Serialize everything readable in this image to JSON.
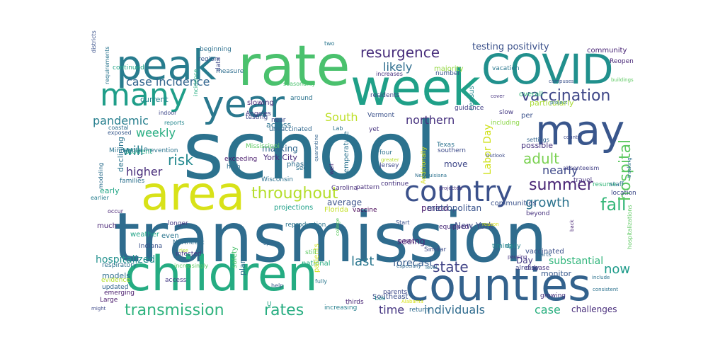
{
  "words": [
    {
      "text": "school",
      "color": "#2c728e"
    },
    {
      "text": "transmission",
      "color": "#2f6c8e"
    },
    {
      "text": "children",
      "color": "#25ac82"
    },
    {
      "text": "counties",
      "color": "#33628d"
    },
    {
      "text": "area",
      "color": "#d8e219"
    },
    {
      "text": "rate",
      "color": "#4ac16d"
    },
    {
      "text": "week",
      "color": "#1fa088"
    },
    {
      "text": "peak",
      "color": "#287c8e"
    },
    {
      "text": "COVID",
      "color": "#21908d"
    },
    {
      "text": "may",
      "color": "#39568c"
    },
    {
      "text": "many",
      "color": "#1f9e89"
    },
    {
      "text": "year",
      "color": "#2a788e"
    },
    {
      "text": "country",
      "color": "#3b518b"
    },
    {
      "text": "transmission",
      "color": "#2db27d"
    },
    {
      "text": "rates",
      "color": "#27ad81"
    },
    {
      "text": "throughout",
      "color": "#b5de2b"
    },
    {
      "text": "resurgence",
      "color": "#472d7b"
    },
    {
      "text": "vaccination",
      "color": "#3f4788"
    },
    {
      "text": "case incidence",
      "color": "#32658e"
    },
    {
      "text": "summer",
      "color": "#482475"
    },
    {
      "text": "fall",
      "color": "#35b779"
    },
    {
      "text": "risk",
      "color": "#23898e"
    },
    {
      "text": "adult",
      "color": "#7ad151"
    },
    {
      "text": "growth",
      "color": "#2c738e"
    },
    {
      "text": "hospital",
      "color": "#5ec962"
    },
    {
      "text": "state",
      "color": "#414487"
    },
    {
      "text": "last",
      "color": "#2a768e"
    },
    {
      "text": "individuals",
      "color": "#2f6b8e"
    },
    {
      "text": "time",
      "color": "#453581"
    },
    {
      "text": "case",
      "color": "#29af7f"
    },
    {
      "text": "now",
      "color": "#1e9b8a"
    },
    {
      "text": "nearly",
      "color": "#3e4989"
    },
    {
      "text": "higher",
      "color": "#472c7a"
    },
    {
      "text": "will",
      "color": "#26818e"
    },
    {
      "text": "weekly",
      "color": "#26ad81"
    },
    {
      "text": "pandemic",
      "color": "#277f8e"
    },
    {
      "text": "northern",
      "color": "#46317e"
    },
    {
      "text": "South",
      "color": "#bddf26"
    },
    {
      "text": "likely",
      "color": "#2e6d8e"
    },
    {
      "text": "hospitalized",
      "color": "#21908d"
    },
    {
      "text": "substantial",
      "color": "#31b57b"
    },
    {
      "text": "testing positivity",
      "color": "#3b518b"
    },
    {
      "text": "forecast",
      "color": "#365c8d"
    },
    {
      "text": "challenges",
      "color": "#472c7a"
    },
    {
      "text": "Labor Day",
      "color": "#d0e11c"
    },
    {
      "text": "New York",
      "color": "#3e4a89"
    },
    {
      "text": "seeing",
      "color": "#482878"
    },
    {
      "text": "masking",
      "color": "#31678e"
    },
    {
      "text": "move",
      "color": "#3f4889"
    },
    {
      "text": "period",
      "color": "#48196b"
    },
    {
      "text": "average",
      "color": "#3b528b"
    },
    {
      "text": "metropolitan",
      "color": "#3a548c"
    },
    {
      "text": "Day",
      "color": "#443a83"
    },
    {
      "text": "possible",
      "color": "#46337f"
    },
    {
      "text": "declining",
      "color": "#2b748e"
    },
    {
      "text": "early",
      "color": "#21a585"
    },
    {
      "text": "models",
      "color": "#2e6f8e"
    },
    {
      "text": "monitor",
      "color": "#38598c"
    },
    {
      "text": "current",
      "color": "#24868e"
    },
    {
      "text": "community",
      "color": "#482475"
    },
    {
      "text": "overall",
      "color": "#35b779"
    },
    {
      "text": "census",
      "color": "#23898e"
    },
    {
      "text": "per",
      "color": "#3b528b"
    },
    {
      "text": "particularly",
      "color": "#a8db34"
    },
    {
      "text": "across",
      "color": "#2c728e"
    },
    {
      "text": "slowing",
      "color": "#482576"
    },
    {
      "text": "majority",
      "color": "#93d741"
    },
    {
      "text": "near",
      "color": "#3e4c8a"
    },
    {
      "text": "testing",
      "color": "#3f4788"
    },
    {
      "text": "York City",
      "color": "#472a7a"
    },
    {
      "text": "phase",
      "color": "#2e6e8e"
    },
    {
      "text": "student",
      "color": "#23a983"
    },
    {
      "text": "temperature",
      "color": "#2c738e"
    },
    {
      "text": "Florida",
      "color": "#c2df23"
    },
    {
      "text": "projections",
      "color": "#1fa088"
    },
    {
      "text": "vaccinated",
      "color": "#3c508b"
    },
    {
      "text": "communities",
      "color": "#3b528b"
    },
    {
      "text": "Wisconsin",
      "color": "#2c718e"
    },
    {
      "text": "Carolina",
      "color": "#472d7b"
    },
    {
      "text": "unvaccinated",
      "color": "#31688e"
    },
    {
      "text": "reproduction",
      "color": "#2b748e"
    },
    {
      "text": "Similar",
      "color": "#3d4d8a"
    },
    {
      "text": "much",
      "color": "#482475"
    },
    {
      "text": "even",
      "color": "#2b758e"
    },
    {
      "text": "Indiana",
      "color": "#3a548c"
    },
    {
      "text": "weather",
      "color": "#20a386"
    },
    {
      "text": "infected",
      "color": "#453882"
    },
    {
      "text": "safety",
      "color": "#4cc26c"
    },
    {
      "text": "plans",
      "color": "#2d708e"
    },
    {
      "text": "national",
      "color": "#26ad81"
    },
    {
      "text": "patients",
      "color": "#d2e21b"
    },
    {
      "text": "Southeast",
      "color": "#3c4f8a"
    },
    {
      "text": "increasing",
      "color": "#27808e"
    },
    {
      "text": "thirds",
      "color": "#482475"
    },
    {
      "text": "growing",
      "color": "#46337f"
    },
    {
      "text": "Minnesota Prevention",
      "color": "#2b748e"
    },
    {
      "text": "Angeles",
      "color": "#443983"
    },
    {
      "text": "Los",
      "color": "#23888e"
    },
    {
      "text": "parents",
      "color": "#3e4989"
    },
    {
      "text": "still",
      "color": "#5ec962"
    },
    {
      "text": "exceeding",
      "color": "#48196b"
    },
    {
      "text": "high",
      "color": "#2e6f8e"
    },
    {
      "text": "families",
      "color": "#2d718e"
    },
    {
      "text": "emerging",
      "color": "#481a6c"
    },
    {
      "text": "access",
      "color": "#443983"
    },
    {
      "text": "hospitalizations",
      "color": "#5ec962"
    },
    {
      "text": "Reopen",
      "color": "#482777"
    },
    {
      "text": "resume",
      "color": "#35b779"
    },
    {
      "text": "travel",
      "color": "#46327e"
    },
    {
      "text": "absenteeism",
      "color": "#424086"
    },
    {
      "text": "settings",
      "color": "#33638d"
    },
    {
      "text": "vacation",
      "color": "#2a778e"
    },
    {
      "text": "number",
      "color": "#3a548c"
    },
    {
      "text": "guidance",
      "color": "#424086"
    },
    {
      "text": "slow",
      "color": "#443a83"
    },
    {
      "text": "including",
      "color": "#8bd646"
    },
    {
      "text": "equipped",
      "color": "#482878"
    },
    {
      "text": "Jersey",
      "color": "#3e4a89"
    },
    {
      "text": "Texas",
      "color": "#2c728e"
    },
    {
      "text": "southern",
      "color": "#3e4c8a"
    },
    {
      "text": "continue",
      "color": "#46327e"
    },
    {
      "text": "pattern",
      "color": "#472d7b"
    },
    {
      "text": "vaccine",
      "color": "#440154"
    },
    {
      "text": "timing",
      "color": "#24868e"
    },
    {
      "text": "daily",
      "color": "#26828e"
    },
    {
      "text": "parts",
      "color": "#31678e"
    },
    {
      "text": "disease",
      "color": "#46337f"
    },
    {
      "text": "already",
      "color": "#414487"
    },
    {
      "text": "beyond",
      "color": "#46317e"
    },
    {
      "text": "location",
      "color": "#3e4a89"
    },
    {
      "text": "staff",
      "color": "#2c718e"
    },
    {
      "text": "onset",
      "color": "#48186a"
    },
    {
      "text": "Start",
      "color": "#3b518b"
    },
    {
      "text": "return",
      "color": "#2f6b8e"
    },
    {
      "text": "help",
      "color": "#375a8c"
    },
    {
      "text": "fully",
      "color": "#2a778e"
    },
    {
      "text": "U",
      "color": "#21a585"
    },
    {
      "text": "Large",
      "color": "#48186a"
    },
    {
      "text": "updated",
      "color": "#32648e"
    },
    {
      "text": "evidence",
      "color": "#b5de2b"
    },
    {
      "text": "respiratory",
      "color": "#2d718e"
    },
    {
      "text": "Northeast",
      "color": "#2e6e8e"
    },
    {
      "text": "longer",
      "color": "#443983"
    },
    {
      "text": "increasingly",
      "color": "#5ec962"
    },
    {
      "text": "occur",
      "color": "#482475"
    },
    {
      "text": "earlier",
      "color": "#277e8e"
    },
    {
      "text": "continued",
      "color": "#20a486"
    },
    {
      "text": "beginning",
      "color": "#2d708e"
    },
    {
      "text": "region",
      "color": "#39568c"
    },
    {
      "text": "measure",
      "color": "#2e6e8e"
    },
    {
      "text": "data",
      "color": "#3e4989"
    },
    {
      "text": "two",
      "color": "#2a768e"
    },
    {
      "text": "seasonality",
      "color": "#4ac16d"
    },
    {
      "text": "around",
      "color": "#2c738e"
    },
    {
      "text": "residents",
      "color": "#3f4788"
    },
    {
      "text": "Vermont",
      "color": "#3b528b"
    },
    {
      "text": "increases",
      "color": "#46317e"
    },
    {
      "text": "incidence",
      "color": "#26ad81"
    },
    {
      "text": "indoor",
      "color": "#3f4889"
    },
    {
      "text": "reports",
      "color": "#24878e"
    },
    {
      "text": "coastal",
      "color": "#2d708e"
    },
    {
      "text": "exposed",
      "color": "#38598c"
    },
    {
      "text": "modeling",
      "color": "#2e6f8e"
    },
    {
      "text": "requirements",
      "color": "#2b758e"
    },
    {
      "text": "districts",
      "color": "#3b528b"
    },
    {
      "text": "might",
      "color": "#3e4a89"
    },
    {
      "text": "Mississippi",
      "color": "#5ec962"
    },
    {
      "text": "see",
      "color": "#2c728e"
    },
    {
      "text": "yet",
      "color": "#46337f"
    },
    {
      "text": "four",
      "color": "#2d718e"
    },
    {
      "text": "well",
      "color": "#482475"
    },
    {
      "text": "quarantine",
      "color": "#33638d"
    },
    {
      "text": "greater",
      "color": "#b5de2b"
    },
    {
      "text": "college",
      "color": "#5ec962"
    },
    {
      "text": "Louisiana",
      "color": "#2c728e"
    },
    {
      "text": "Alabama",
      "color": "#d8e219"
    },
    {
      "text": "especially",
      "color": "#31688e"
    },
    {
      "text": "campuses",
      "color": "#3b528b"
    },
    {
      "text": "cover",
      "color": "#46337f"
    },
    {
      "text": "project",
      "color": "#2c728e"
    },
    {
      "text": "county",
      "color": "#3e4989"
    },
    {
      "text": "reason",
      "color": "#d8e219"
    },
    {
      "text": "back",
      "color": "#482475"
    },
    {
      "text": "pausing",
      "color": "#46337f"
    },
    {
      "text": "include",
      "color": "#2c728e"
    },
    {
      "text": "tracking",
      "color": "#2e6e8e"
    },
    {
      "text": "consistent",
      "color": "#2c728e"
    },
    {
      "text": "buildings",
      "color": "#5ec962"
    },
    {
      "text": "projected",
      "color": "#46337f"
    },
    {
      "text": "Outlook",
      "color": "#3e4c8a"
    },
    {
      "text": "level",
      "color": "#2e6f8e"
    },
    {
      "text": "open",
      "color": "#31688e"
    },
    {
      "text": "Additionally",
      "color": "#d8e219"
    },
    {
      "text": "Lab",
      "color": "#2c728e"
    },
    {
      "text": "New",
      "color": "#2e6e8e"
    },
    {
      "text": "rise",
      "color": "#b5de2b"
    },
    {
      "text": "fear",
      "color": "#5ec962"
    },
    {
      "text": "goal",
      "color": "#d8e219"
    }
  ]
}
